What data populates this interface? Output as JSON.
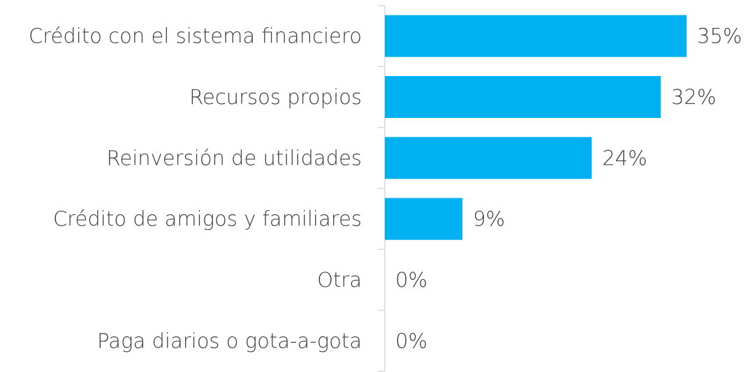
{
  "chart_data": {
    "type": "barh",
    "categories": [
      "Crédito con el sistema financiero",
      "Recursos propios",
      "Reinversión de utilidades",
      "Crédito de amigos y familiares",
      "Otra",
      "Paga diarios o gota-a-gota"
    ],
    "values": [
      35,
      32,
      24,
      9,
      0,
      0
    ],
    "value_labels": [
      "35%",
      "32%",
      "24%",
      "9%",
      "0%",
      "0%"
    ],
    "color": "#00b0f0"
  }
}
